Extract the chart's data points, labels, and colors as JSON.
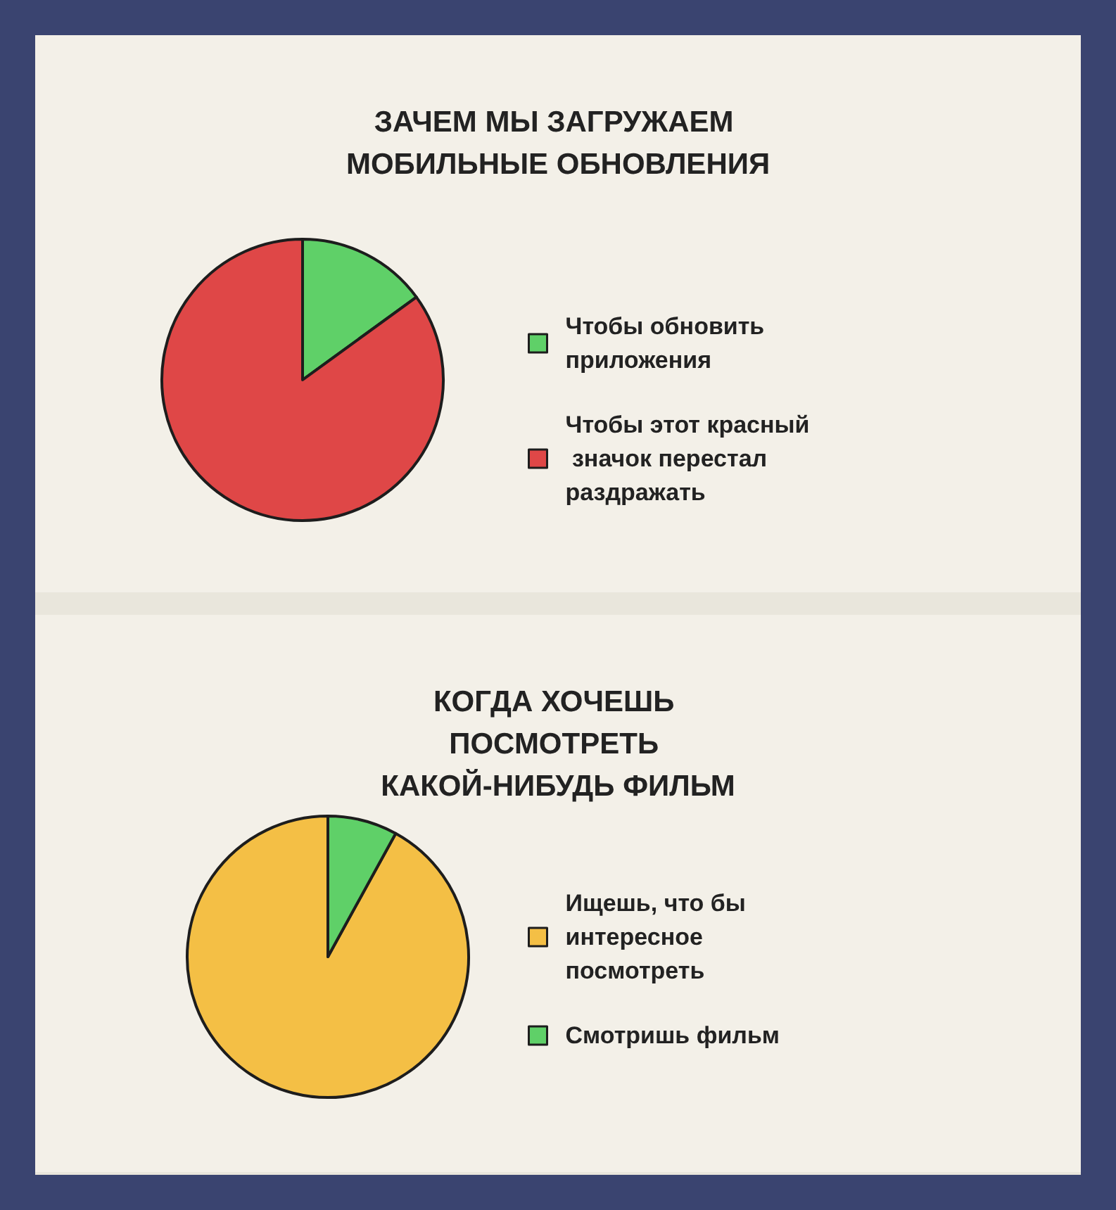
{
  "chart_data": [
    {
      "type": "pie",
      "title": "ЗАЧЕМ МЫ ЗАГРУЖАЕМ МОБИЛЬНЫЕ ОБНОВЛЕНИЯ",
      "categories": [
        "Чтобы обновить приложения",
        "Чтобы этот красный значок перестал раздражать"
      ],
      "values": [
        15,
        85
      ],
      "colors": [
        "#5fd068",
        "#df4747"
      ],
      "legend": "right"
    },
    {
      "type": "pie",
      "title": "КОГДА ХОЧЕШЬ ПОСМОТРЕТЬ КАКОЙ-НИБУДЬ ФИЛЬМ",
      "categories": [
        "Ищешь, что бы интересное посмотреть",
        "Смотришь фильм"
      ],
      "values": [
        92,
        8
      ],
      "colors": [
        "#f4bf45",
        "#5fd068"
      ],
      "legend": "right"
    }
  ]
}
